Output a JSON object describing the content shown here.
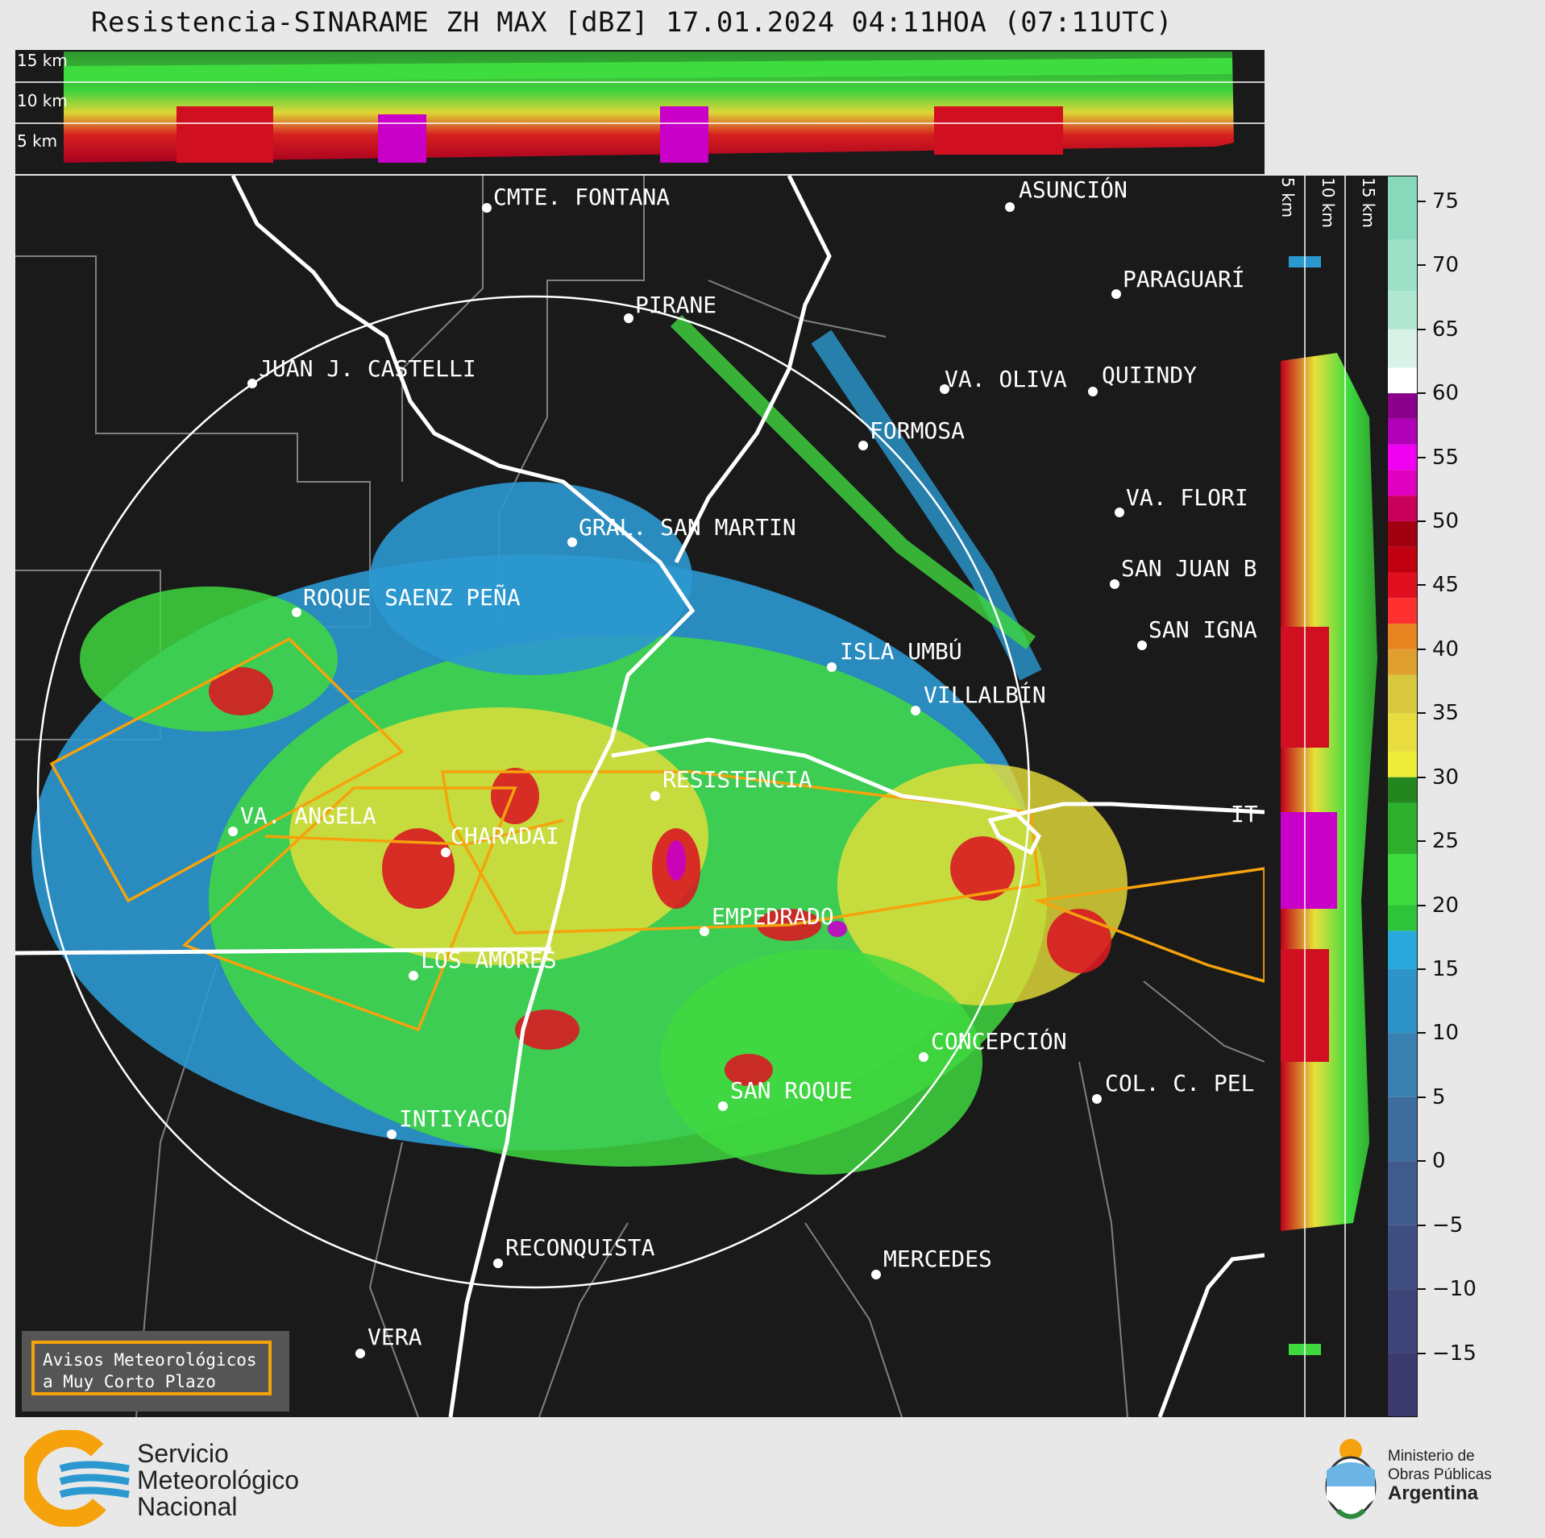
{
  "title": "Resistencia-SINARAME ZH MAX [dBZ] 17.01.2024 04:11HOA (07:11UTC)",
  "cross_section_top": {
    "altitude_labels": [
      "15 km",
      "10 km",
      "5 km"
    ]
  },
  "cross_section_right": {
    "altitude_labels": [
      "5 km",
      "10 km",
      "15 km"
    ]
  },
  "colorbar": {
    "unit": "dBZ",
    "ticks": [
      "75",
      "70",
      "65",
      "60",
      "55",
      "50",
      "45",
      "40",
      "35",
      "30",
      "25",
      "20",
      "15",
      "10",
      "5",
      "0",
      "−5",
      "−10",
      "−15"
    ]
  },
  "cities": [
    {
      "name": "CMTE. FONTANA"
    },
    {
      "name": "ASUNCIÓN"
    },
    {
      "name": "PIRANE"
    },
    {
      "name": "PARAGUARÍ"
    },
    {
      "name": "JUAN J. CASTELLI"
    },
    {
      "name": "VA. OLIVA"
    },
    {
      "name": "QUIINDY"
    },
    {
      "name": "FORMOSA"
    },
    {
      "name": "VA. FLORI"
    },
    {
      "name": "GRAL. SAN MARTIN"
    },
    {
      "name": "SAN JUAN B"
    },
    {
      "name": "ROQUE SAENZ PEÑA"
    },
    {
      "name": "SAN IGNA"
    },
    {
      "name": "ISLA UMBÚ"
    },
    {
      "name": "VILLALBÍN"
    },
    {
      "name": "RESISTENCIA"
    },
    {
      "name": "VA. ANGELA"
    },
    {
      "name": "CHARADAI"
    },
    {
      "name": "IT"
    },
    {
      "name": "EMPEDRADO"
    },
    {
      "name": "LOS AMORES"
    },
    {
      "name": "CONCEPCIÓN"
    },
    {
      "name": "SAN ROQUE"
    },
    {
      "name": "COL. C. PEL"
    },
    {
      "name": "INTIYACO"
    },
    {
      "name": "RECONQUISTA"
    },
    {
      "name": "MERCEDES"
    },
    {
      "name": "VERA"
    }
  ],
  "warning_box": {
    "line1": "Avisos Meteorológicos",
    "line2": "a Muy Corto Plazo"
  },
  "footer": {
    "smn": [
      "Servicio",
      "Meteorológico",
      "Nacional"
    ],
    "ministry": [
      "Ministerio de",
      "Obras Públicas",
      "Argentina"
    ]
  },
  "colors": {
    "background": "#e8e8e8",
    "map_background": "#1a1a1a",
    "warning_polygon": "#f5a20c",
    "range_ring": "#ffffff"
  }
}
